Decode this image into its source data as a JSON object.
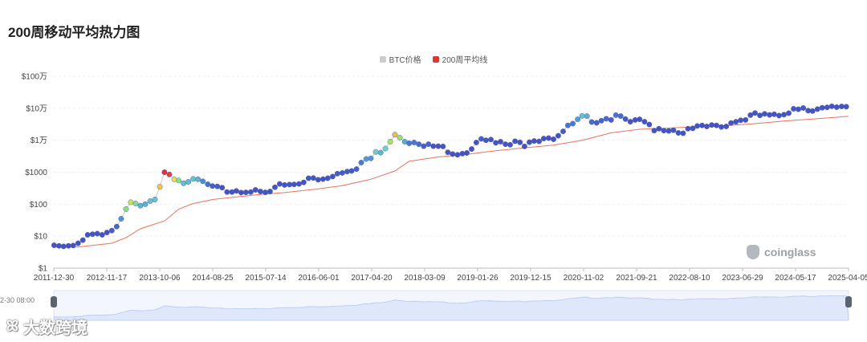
{
  "title": "200周移动平均热力图",
  "legend": [
    {
      "label": "BTC价格",
      "color": "#cccccc"
    },
    {
      "label": "200周平均线",
      "color": "#d7393a"
    }
  ],
  "watermark": "coinglass",
  "brand": "大数跨境",
  "slider_start_label": "2-30 08:00",
  "colors": {
    "ma": "#e8735f",
    "slider_fill": "#dfe8fb",
    "slider_line": "#b8c8ef",
    "grid": "#eeeeee"
  },
  "chart_data": {
    "type": "scatter",
    "title": "200周移动平均热力图",
    "y_scale": "log",
    "ylim": [
      1,
      1000000
    ],
    "y_ticks": [
      {
        "value": 1,
        "label": "$1"
      },
      {
        "value": 10,
        "label": "$10"
      },
      {
        "value": 100,
        "label": "$100"
      },
      {
        "value": 1000,
        "label": "$1000"
      },
      {
        "value": 10000,
        "label": "$1万"
      },
      {
        "value": 100000,
        "label": "$10万"
      },
      {
        "value": 1000000,
        "label": "$100万"
      }
    ],
    "x_range": [
      "2011-12-30",
      "2025-10-15"
    ],
    "x_tick_labels": [
      "2011-12-30",
      "2012-11-17",
      "2013-10-06",
      "2014-08-25",
      "2015-07-14",
      "2016-06-01",
      "2017-04-20",
      "2018-03-09",
      "2019-01-26",
      "2019-12-15",
      "2020-11-02",
      "2021-09-21",
      "2022-08-10",
      "2023-06-29",
      "2024-05-17",
      "2025-04-05"
    ],
    "series": [
      {
        "name": "BTC价格",
        "points": [
          [
            "2012-01-01",
            5.2
          ],
          [
            "2012-02-01",
            5
          ],
          [
            "2012-03-01",
            4.8
          ],
          [
            "2012-04-01",
            5
          ],
          [
            "2012-05-01",
            5.1
          ],
          [
            "2012-06-01",
            6
          ],
          [
            "2012-07-01",
            7.5
          ],
          [
            "2012-08-01",
            11
          ],
          [
            "2012-09-01",
            11.5
          ],
          [
            "2012-10-01",
            12
          ],
          [
            "2012-11-01",
            11
          ],
          [
            "2012-12-01",
            13
          ],
          [
            "2013-01-01",
            15
          ],
          [
            "2013-02-01",
            20
          ],
          [
            "2013-03-01",
            35
          ],
          [
            "2013-04-01",
            70
          ],
          [
            "2013-05-01",
            115
          ],
          [
            "2013-06-01",
            105
          ],
          [
            "2013-07-01",
            90
          ],
          [
            "2013-08-01",
            100
          ],
          [
            "2013-09-01",
            125
          ],
          [
            "2013-10-01",
            140
          ],
          [
            "2013-11-01",
            350
          ],
          [
            "2013-12-01",
            1000
          ],
          [
            "2014-01-01",
            850
          ],
          [
            "2014-02-01",
            600
          ],
          [
            "2014-03-01",
            550
          ],
          [
            "2014-04-01",
            450
          ],
          [
            "2014-05-01",
            500
          ],
          [
            "2014-06-01",
            620
          ],
          [
            "2014-07-01",
            600
          ],
          [
            "2014-08-01",
            520
          ],
          [
            "2014-09-01",
            420
          ],
          [
            "2014-10-01",
            370
          ],
          [
            "2014-11-01",
            360
          ],
          [
            "2014-12-01",
            330
          ],
          [
            "2015-01-01",
            240
          ],
          [
            "2015-02-01",
            240
          ],
          [
            "2015-03-01",
            260
          ],
          [
            "2015-04-01",
            230
          ],
          [
            "2015-05-01",
            235
          ],
          [
            "2015-06-01",
            240
          ],
          [
            "2015-07-01",
            280
          ],
          [
            "2015-08-01",
            250
          ],
          [
            "2015-09-01",
            235
          ],
          [
            "2015-10-01",
            250
          ],
          [
            "2015-11-01",
            340
          ],
          [
            "2015-12-01",
            430
          ],
          [
            "2016-01-01",
            400
          ],
          [
            "2016-02-01",
            410
          ],
          [
            "2016-03-01",
            415
          ],
          [
            "2016-04-01",
            430
          ],
          [
            "2016-05-01",
            480
          ],
          [
            "2016-06-01",
            650
          ],
          [
            "2016-07-01",
            660
          ],
          [
            "2016-08-01",
            580
          ],
          [
            "2016-09-01",
            610
          ],
          [
            "2016-10-01",
            650
          ],
          [
            "2016-11-01",
            730
          ],
          [
            "2016-12-01",
            900
          ],
          [
            "2017-01-01",
            950
          ],
          [
            "2017-02-01",
            1050
          ],
          [
            "2017-03-01",
            1100
          ],
          [
            "2017-04-01",
            1250
          ],
          [
            "2017-05-01",
            2000
          ],
          [
            "2017-06-01",
            2600
          ],
          [
            "2017-07-01",
            2700
          ],
          [
            "2017-08-01",
            4300
          ],
          [
            "2017-09-01",
            4100
          ],
          [
            "2017-10-01",
            5500
          ],
          [
            "2017-11-01",
            9000
          ],
          [
            "2017-12-01",
            15000
          ],
          [
            "2018-01-01",
            12000
          ],
          [
            "2018-02-01",
            9000
          ],
          [
            "2018-03-01",
            8000
          ],
          [
            "2018-04-01",
            8500
          ],
          [
            "2018-05-01",
            7500
          ],
          [
            "2018-06-01",
            6500
          ],
          [
            "2018-07-01",
            7500
          ],
          [
            "2018-08-01",
            6500
          ],
          [
            "2018-09-01",
            6500
          ],
          [
            "2018-10-01",
            6400
          ],
          [
            "2018-11-01",
            4200
          ],
          [
            "2018-12-01",
            3700
          ],
          [
            "2019-01-01",
            3500
          ],
          [
            "2019-02-01",
            3800
          ],
          [
            "2019-03-01",
            4000
          ],
          [
            "2019-04-01",
            5300
          ],
          [
            "2019-05-01",
            8500
          ],
          [
            "2019-06-01",
            11000
          ],
          [
            "2019-07-01",
            10000
          ],
          [
            "2019-08-01",
            10500
          ],
          [
            "2019-09-01",
            8300
          ],
          [
            "2019-10-01",
            9000
          ],
          [
            "2019-11-01",
            7500
          ],
          [
            "2019-12-01",
            7200
          ],
          [
            "2020-01-01",
            9300
          ],
          [
            "2020-02-01",
            8600
          ],
          [
            "2020-03-01",
            6400
          ],
          [
            "2020-04-01",
            8700
          ],
          [
            "2020-05-01",
            9500
          ],
          [
            "2020-06-01",
            9200
          ],
          [
            "2020-07-01",
            11300
          ],
          [
            "2020-08-01",
            11700
          ],
          [
            "2020-09-01",
            10700
          ],
          [
            "2020-10-01",
            13800
          ],
          [
            "2020-11-01",
            19000
          ],
          [
            "2020-12-01",
            29000
          ],
          [
            "2021-01-01",
            33000
          ],
          [
            "2021-02-01",
            45000
          ],
          [
            "2021-03-01",
            58000
          ],
          [
            "2021-04-01",
            57000
          ],
          [
            "2021-05-01",
            37000
          ],
          [
            "2021-06-01",
            35000
          ],
          [
            "2021-07-01",
            41000
          ],
          [
            "2021-08-01",
            47000
          ],
          [
            "2021-09-01",
            43000
          ],
          [
            "2021-10-01",
            61000
          ],
          [
            "2021-11-01",
            57000
          ],
          [
            "2021-12-01",
            46000
          ],
          [
            "2022-01-01",
            38000
          ],
          [
            "2022-02-01",
            43000
          ],
          [
            "2022-03-01",
            45000
          ],
          [
            "2022-04-01",
            38000
          ],
          [
            "2022-05-01",
            31000
          ],
          [
            "2022-06-01",
            20000
          ],
          [
            "2022-07-01",
            23000
          ],
          [
            "2022-08-01",
            20000
          ],
          [
            "2022-09-01",
            19500
          ],
          [
            "2022-10-01",
            20500
          ],
          [
            "2022-11-01",
            17000
          ],
          [
            "2022-12-01",
            16500
          ],
          [
            "2023-01-01",
            23000
          ],
          [
            "2023-02-01",
            23500
          ],
          [
            "2023-03-01",
            28000
          ],
          [
            "2023-04-01",
            29000
          ],
          [
            "2023-05-01",
            27000
          ],
          [
            "2023-06-01",
            30000
          ],
          [
            "2023-07-01",
            29000
          ],
          [
            "2023-08-01",
            26000
          ],
          [
            "2023-09-01",
            27000
          ],
          [
            "2023-10-01",
            34500
          ],
          [
            "2023-11-01",
            37700
          ],
          [
            "2023-12-01",
            42000
          ],
          [
            "2024-01-01",
            43000
          ],
          [
            "2024-02-01",
            61000
          ],
          [
            "2024-03-01",
            71000
          ],
          [
            "2024-04-01",
            60000
          ],
          [
            "2024-05-01",
            67000
          ],
          [
            "2024-06-01",
            62000
          ],
          [
            "2024-07-01",
            65000
          ],
          [
            "2024-08-01",
            59000
          ],
          [
            "2024-09-01",
            63000
          ],
          [
            "2024-10-01",
            70000
          ],
          [
            "2024-11-01",
            96000
          ],
          [
            "2024-12-01",
            93000
          ],
          [
            "2025-01-01",
            102000
          ],
          [
            "2025-02-01",
            84000
          ],
          [
            "2025-03-01",
            82000
          ],
          [
            "2025-04-01",
            94000
          ],
          [
            "2025-05-01",
            104000
          ],
          [
            "2025-06-01",
            107000
          ],
          [
            "2025-07-01",
            115000
          ],
          [
            "2025-08-01",
            108000
          ],
          [
            "2025-09-01",
            114000
          ],
          [
            "2025-10-01",
            112000
          ]
        ]
      },
      {
        "name": "200周平均线",
        "points": [
          [
            "2012-01-01",
            4.5
          ],
          [
            "2012-06-01",
            4.6
          ],
          [
            "2013-01-01",
            6
          ],
          [
            "2013-04-01",
            9
          ],
          [
            "2013-07-01",
            17
          ],
          [
            "2013-10-01",
            24
          ],
          [
            "2013-12-01",
            30
          ],
          [
            "2014-03-01",
            70
          ],
          [
            "2014-06-01",
            105
          ],
          [
            "2014-10-01",
            140
          ],
          [
            "2015-03-01",
            170
          ],
          [
            "2015-08-01",
            200
          ],
          [
            "2016-01-01",
            230
          ],
          [
            "2016-08-01",
            300
          ],
          [
            "2017-01-01",
            380
          ],
          [
            "2017-07-01",
            600
          ],
          [
            "2017-12-01",
            1100
          ],
          [
            "2018-03-01",
            2200
          ],
          [
            "2018-09-01",
            3000
          ],
          [
            "2019-03-01",
            3600
          ],
          [
            "2019-09-01",
            4700
          ],
          [
            "2020-03-01",
            5800
          ],
          [
            "2020-09-01",
            7000
          ],
          [
            "2021-03-01",
            10000
          ],
          [
            "2021-09-01",
            17000
          ],
          [
            "2022-03-01",
            22000
          ],
          [
            "2022-08-01",
            23500
          ],
          [
            "2023-03-01",
            26500
          ],
          [
            "2023-09-01",
            28500
          ],
          [
            "2024-03-01",
            33000
          ],
          [
            "2024-09-01",
            40000
          ],
          [
            "2025-03-01",
            46000
          ],
          [
            "2025-10-15",
            56000
          ]
        ]
      }
    ]
  }
}
